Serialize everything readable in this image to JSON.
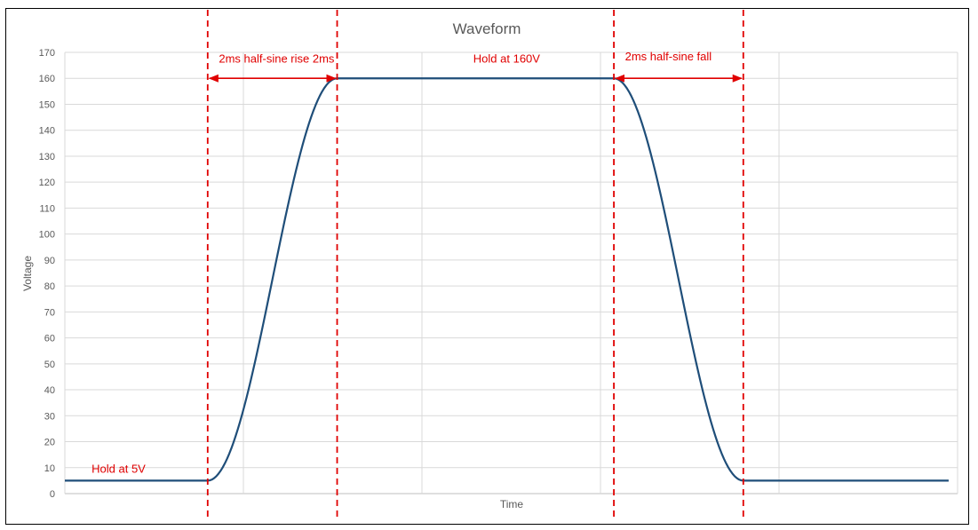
{
  "chart_data": {
    "type": "line",
    "title": "Waveform",
    "xlabel": "Time",
    "ylabel": "Voltage",
    "ylim": [
      0,
      170
    ],
    "ytick_step": 10,
    "xlim": [
      0,
      20
    ],
    "grid": true,
    "legend": "none",
    "series": [
      {
        "color": "#1f4e79",
        "segments": [
          {
            "kind": "hold",
            "x0": 0,
            "x1": 3.2,
            "y": 5
          },
          {
            "kind": "half-sine",
            "x0": 3.2,
            "x1": 6.1,
            "y0": 5,
            "y1": 160
          },
          {
            "kind": "hold",
            "x0": 6.1,
            "x1": 12.3,
            "y": 160
          },
          {
            "kind": "half-sine",
            "x0": 12.3,
            "x1": 15.2,
            "y0": 160,
            "y1": 5
          },
          {
            "kind": "hold",
            "x0": 15.2,
            "x1": 19.8,
            "y": 5
          }
        ]
      }
    ],
    "markers": {
      "color": "#e00000",
      "lines_x": [
        3.2,
        6.1,
        12.3,
        15.2
      ],
      "arrows": [
        {
          "x0": 3.2,
          "x1": 6.1,
          "y": 160
        },
        {
          "x0": 12.3,
          "x1": 15.2,
          "y": 160
        }
      ],
      "labels": [
        {
          "text": "2ms half-sine rise 2ms",
          "x": 3.45,
          "y": 166
        },
        {
          "text": "Hold at 160V",
          "x": 9.15,
          "y": 166
        },
        {
          "text": "2ms half-sine fall",
          "x": 12.55,
          "y": 167
        },
        {
          "text": "Hold at 5V",
          "x": 0.6,
          "y": 8
        }
      ]
    }
  }
}
